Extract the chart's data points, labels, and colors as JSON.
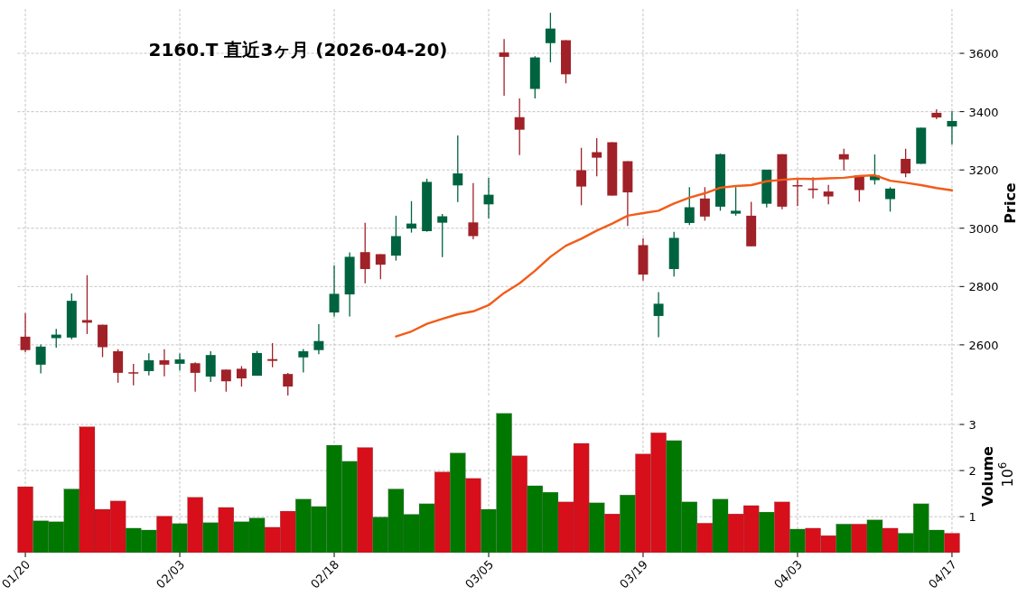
{
  "chart_data": [
    {
      "type": "candlestick",
      "title": "2160.T 直近3ヶ月 (2026-04-20)",
      "ylabel": "Price",
      "grid": true,
      "tick_labels": "y",
      "categories": [
        null,
        null,
        null,
        null,
        null,
        null,
        null,
        null,
        null,
        null,
        null,
        null,
        null,
        null,
        null,
        null,
        null,
        null,
        null,
        null,
        null,
        null,
        null,
        null,
        null,
        null,
        null,
        null,
        null,
        null,
        null,
        null,
        null,
        null,
        null,
        null,
        null,
        null,
        null,
        null,
        null,
        null,
        null,
        null,
        null,
        null,
        null,
        null,
        null,
        null,
        null,
        null,
        null,
        null,
        null,
        null,
        null,
        null,
        null,
        null,
        null
      ],
      "ohlc": [
        [
          2628,
          2709,
          2575,
          2582
        ],
        [
          2532,
          2601,
          2502,
          2594
        ],
        [
          2623,
          2655,
          2590,
          2635
        ],
        [
          2625,
          2776,
          2619,
          2751
        ],
        [
          2685,
          2839,
          2637,
          2676
        ],
        [
          2669,
          2669,
          2558,
          2592
        ],
        [
          2578,
          2585,
          2470,
          2504
        ],
        [
          2506,
          2535,
          2461,
          2504
        ],
        [
          2510,
          2571,
          2495,
          2547
        ],
        [
          2547,
          2585,
          2492,
          2532
        ],
        [
          2535,
          2570,
          2512,
          2550
        ],
        [
          2537,
          2540,
          2439,
          2504
        ],
        [
          2491,
          2578,
          2473,
          2565
        ],
        [
          2515,
          2515,
          2439,
          2475
        ],
        [
          2518,
          2527,
          2457,
          2485
        ],
        [
          2494,
          2579,
          2494,
          2572
        ],
        [
          2551,
          2606,
          2523,
          2545
        ],
        [
          2500,
          2504,
          2426,
          2457
        ],
        [
          2557,
          2586,
          2505,
          2578
        ],
        [
          2582,
          2671,
          2568,
          2613
        ],
        [
          2711,
          2873,
          2697,
          2775
        ],
        [
          2773,
          2917,
          2697,
          2902
        ],
        [
          2918,
          3019,
          2811,
          2860
        ],
        [
          2911,
          2911,
          2825,
          2875
        ],
        [
          2906,
          3043,
          2889,
          2973
        ],
        [
          2999,
          3093,
          2985,
          3016
        ],
        [
          2990,
          3170,
          2988,
          3159
        ],
        [
          3019,
          3049,
          2901,
          3041
        ],
        [
          3147,
          3318,
          3090,
          3188
        ],
        [
          3020,
          3155,
          2962,
          2973
        ],
        [
          3082,
          3173,
          3034,
          3115
        ],
        [
          3603,
          3649,
          3455,
          3588
        ],
        [
          3381,
          3445,
          3251,
          3338
        ],
        [
          3478,
          3590,
          3445,
          3586
        ],
        [
          3635,
          3739,
          3569,
          3685
        ],
        [
          3645,
          3645,
          3497,
          3528
        ],
        [
          3199,
          3276,
          3079,
          3143
        ],
        [
          3261,
          3309,
          3178,
          3242
        ],
        [
          3295,
          3295,
          3112,
          3112
        ],
        [
          3230,
          3230,
          3008,
          3123
        ],
        [
          2942,
          2966,
          2820,
          2841
        ],
        [
          2699,
          2781,
          2626,
          2741
        ],
        [
          2860,
          2988,
          2834,
          2967
        ],
        [
          3018,
          3141,
          3011,
          3072
        ],
        [
          3102,
          3141,
          3026,
          3040
        ],
        [
          3074,
          3256,
          3060,
          3254
        ],
        [
          3050,
          3141,
          3043,
          3060
        ],
        [
          3043,
          3091,
          2938,
          2938
        ],
        [
          3084,
          3201,
          3071,
          3201
        ],
        [
          3254,
          3254,
          3065,
          3074
        ],
        [
          3148,
          3167,
          3076,
          3146
        ],
        [
          3136,
          3175,
          3102,
          3131
        ],
        [
          3126,
          3149,
          3082,
          3109
        ],
        [
          3254,
          3273,
          3198,
          3236
        ],
        [
          3181,
          3181,
          3091,
          3131
        ],
        [
          3165,
          3253,
          3150,
          3181
        ],
        [
          3100,
          3141,
          3057,
          3136
        ],
        [
          3238,
          3273,
          3175,
          3188
        ],
        [
          3221,
          3345,
          3221,
          3345
        ],
        [
          3396,
          3408,
          3374,
          3380
        ],
        [
          3349,
          3402,
          3287,
          3368
        ]
      ],
      "colors": [
        "#a02128",
        "#006340",
        "#006340",
        "#006340",
        "#a02128",
        "#a02128",
        "#a02128",
        "#a02128",
        "#006340",
        "#a02128",
        "#006340",
        "#a02128",
        "#006340",
        "#a02128",
        "#a02128",
        "#006340",
        "#a02128",
        "#a02128",
        "#006340",
        "#006340",
        "#006340",
        "#006340",
        "#a02128",
        "#a02128",
        "#006340",
        "#006340",
        "#006340",
        "#006340",
        "#006340",
        "#a02128",
        "#006340",
        "#a02128",
        "#a02128",
        "#006340",
        "#006340",
        "#a02128",
        "#a02128",
        "#a02128",
        "#a02128",
        "#a02128",
        "#a02128",
        "#006340",
        "#006340",
        "#006340",
        "#a02128",
        "#006340",
        "#006340",
        "#a02128",
        "#006340",
        "#a02128",
        "#a02128",
        "#a02128",
        "#a02128",
        "#a02128",
        "#a02128",
        "#006340",
        "#006340",
        "#a02128",
        "#006340",
        "#a02128",
        "#006340"
      ],
      "series": [
        {
          "type": "line",
          "color": "#f25c19",
          "values": [
            null,
            null,
            null,
            null,
            null,
            null,
            null,
            null,
            null,
            null,
            null,
            null,
            null,
            null,
            null,
            null,
            null,
            null,
            null,
            null,
            null,
            null,
            null,
            null,
            2629,
            2646,
            2672,
            2689,
            2705,
            2715,
            2736,
            2778,
            2811,
            2854,
            2902,
            2940,
            2964,
            2992,
            3016,
            3043,
            3052,
            3060,
            3085,
            3105,
            3120,
            3139,
            3145,
            3148,
            3161,
            3166,
            3170,
            3169,
            3171,
            3173,
            3179,
            3182,
            3163,
            3156,
            3148,
            3138,
            3130
          ]
        }
      ],
      "ylim": [
        2420,
        3752
      ],
      "yticks": [
        2600,
        2800,
        3000,
        3200,
        3400,
        3600
      ]
    },
    {
      "type": "bar",
      "ylabel": "Volume",
      "annotations": [
        "10$^{6}$"
      ],
      "grid": true,
      "categories": [
        "01/20",
        null,
        null,
        null,
        null,
        null,
        null,
        null,
        null,
        null,
        "02/03",
        null,
        null,
        null,
        null,
        null,
        null,
        null,
        null,
        null,
        "02/18",
        null,
        null,
        null,
        null,
        null,
        null,
        null,
        null,
        null,
        "03/05",
        null,
        null,
        null,
        null,
        null,
        null,
        null,
        null,
        null,
        "03/19",
        null,
        null,
        null,
        null,
        null,
        null,
        null,
        null,
        null,
        "04/03",
        null,
        null,
        null,
        null,
        null,
        null,
        null,
        null,
        null,
        "04/17"
      ],
      "values": [
        1.65,
        0.91,
        0.89,
        1.6,
        2.95,
        1.16,
        1.34,
        0.75,
        0.71,
        1.01,
        0.85,
        1.42,
        0.87,
        1.2,
        0.89,
        0.97,
        0.77,
        1.12,
        1.38,
        1.22,
        2.55,
        2.2,
        2.5,
        0.99,
        1.6,
        1.05,
        1.28,
        1.97,
        2.38,
        1.83,
        1.16,
        3.24,
        2.32,
        1.67,
        1.53,
        1.32,
        2.59,
        1.3,
        1.06,
        1.47,
        2.36,
        2.82,
        2.65,
        1.32,
        0.86,
        1.38,
        1.06,
        1.24,
        1.1,
        1.32,
        0.73,
        0.75,
        0.59,
        0.84,
        0.84,
        0.93,
        0.75,
        0.64,
        1.28,
        0.71,
        0.64
      ],
      "colors": [
        "#d60f1a",
        "#007800",
        "#007800",
        "#007800",
        "#d60f1a",
        "#d60f1a",
        "#d60f1a",
        "#007800",
        "#007800",
        "#d60f1a",
        "#007800",
        "#d60f1a",
        "#007800",
        "#d60f1a",
        "#007800",
        "#007800",
        "#d60f1a",
        "#d60f1a",
        "#007800",
        "#007800",
        "#007800",
        "#007800",
        "#d60f1a",
        "#007800",
        "#007800",
        "#007800",
        "#007800",
        "#d60f1a",
        "#007800",
        "#d60f1a",
        "#007800",
        "#007800",
        "#d60f1a",
        "#007800",
        "#007800",
        "#d60f1a",
        "#d60f1a",
        "#007800",
        "#d60f1a",
        "#007800",
        "#d60f1a",
        "#d60f1a",
        "#007800",
        "#007800",
        "#d60f1a",
        "#007800",
        "#d60f1a",
        "#d60f1a",
        "#007800",
        "#d60f1a",
        "#007800",
        "#d60f1a",
        "#d60f1a",
        "#007800",
        "#d60f1a",
        "#007800",
        "#d60f1a",
        "#007800",
        "#007800",
        "#007800",
        "#d60f1a"
      ],
      "ylim": [
        0.22,
        3.53
      ],
      "yticks": [
        1,
        2,
        3
      ]
    }
  ]
}
